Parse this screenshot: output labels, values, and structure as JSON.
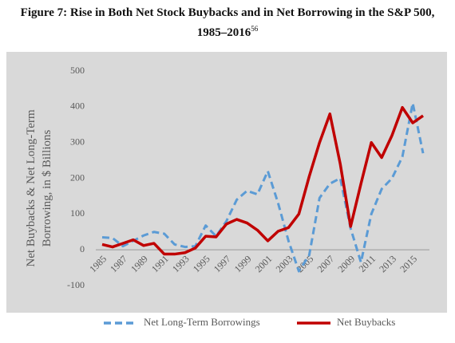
{
  "chart_data": {
    "type": "line",
    "title": "Figure 7: Rise in Both Net Stock Buybacks and in Net Borrowing in the S&P 500, 1985–2016",
    "title_note": "56",
    "ylabel": [
      "Net Buybacks & Net Long-Term",
      "Borrowing, in $ Billions"
    ],
    "categories": [
      "1985",
      null,
      "1987",
      null,
      "1989",
      null,
      "1991",
      null,
      "1993",
      null,
      "1995",
      null,
      "1997",
      null,
      "1999",
      null,
      "2001",
      null,
      "2003",
      null,
      "2005",
      null,
      "2007",
      null,
      "2009",
      null,
      "2011",
      null,
      "2013",
      null,
      "2015",
      null
    ],
    "series": [
      {
        "name": "Net Long-Term Borrowings",
        "color": "#5b9bd5",
        "dashed": true,
        "values": [
          35,
          33,
          10,
          25,
          40,
          50,
          45,
          15,
          8,
          10,
          68,
          38,
          80,
          140,
          165,
          155,
          220,
          130,
          25,
          -60,
          -15,
          145,
          185,
          200,
          60,
          -35,
          100,
          170,
          200,
          260,
          410,
          270
        ]
      },
      {
        "name": "Net Buybacks",
        "color": "#c00000",
        "dashed": false,
        "values": [
          15,
          8,
          18,
          28,
          12,
          18,
          -12,
          -12,
          -8,
          5,
          38,
          36,
          72,
          85,
          75,
          55,
          25,
          52,
          62,
          100,
          205,
          300,
          380,
          240,
          65,
          185,
          300,
          258,
          320,
          398,
          355,
          375
        ]
      }
    ],
    "ylim": [
      -100,
      500
    ],
    "yticks": [
      -100,
      0,
      100,
      200,
      300,
      400,
      500
    ],
    "grid": false,
    "legend": "bottom",
    "background": "#d9d9d9"
  }
}
